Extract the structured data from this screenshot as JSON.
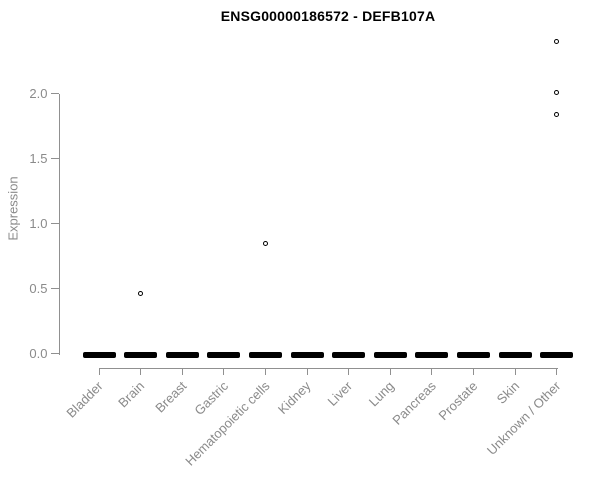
{
  "title": "ENSG00000186572 - DEFB107A",
  "chart_data": {
    "type": "scatter",
    "subtype": "strip-plot-by-category",
    "title": "ENSG00000186572 - DEFB107A",
    "xlabel": "",
    "ylabel": "Expression",
    "ylim": [
      0,
      2.45
    ],
    "yticks": [
      "0.0",
      "0.5",
      "1.0",
      "1.5",
      "2.0"
    ],
    "ytick_values": [
      0.0,
      0.5,
      1.0,
      1.5,
      2.0
    ],
    "grid": false,
    "legend": false,
    "point_color": "#000000",
    "axis_color": "#909090",
    "label_color": "#8a8a8a",
    "title_color": "#000000",
    "categories": [
      "Bladder",
      "Brain",
      "Breast",
      "Gastric",
      "Hematopoietic cells",
      "Kidney",
      "Liver",
      "Lung",
      "Pancreas",
      "Prostate",
      "Skin",
      "Unknown / Other"
    ],
    "series": [
      {
        "category": "Bladder",
        "zero_cluster": true,
        "outliers": []
      },
      {
        "category": "Brain",
        "zero_cluster": true,
        "outliers": [
          0.46
        ]
      },
      {
        "category": "Breast",
        "zero_cluster": true,
        "outliers": []
      },
      {
        "category": "Gastric",
        "zero_cluster": true,
        "outliers": []
      },
      {
        "category": "Hematopoietic cells",
        "zero_cluster": true,
        "outliers": [
          0.85
        ]
      },
      {
        "category": "Kidney",
        "zero_cluster": true,
        "outliers": []
      },
      {
        "category": "Liver",
        "zero_cluster": true,
        "outliers": []
      },
      {
        "category": "Lung",
        "zero_cluster": true,
        "outliers": []
      },
      {
        "category": "Pancreas",
        "zero_cluster": true,
        "outliers": []
      },
      {
        "category": "Prostate",
        "zero_cluster": true,
        "outliers": []
      },
      {
        "category": "Skin",
        "zero_cluster": true,
        "outliers": []
      },
      {
        "category": "Unknown / Other",
        "zero_cluster": true,
        "outliers": [
          1.84,
          2.01,
          2.4
        ]
      }
    ]
  }
}
